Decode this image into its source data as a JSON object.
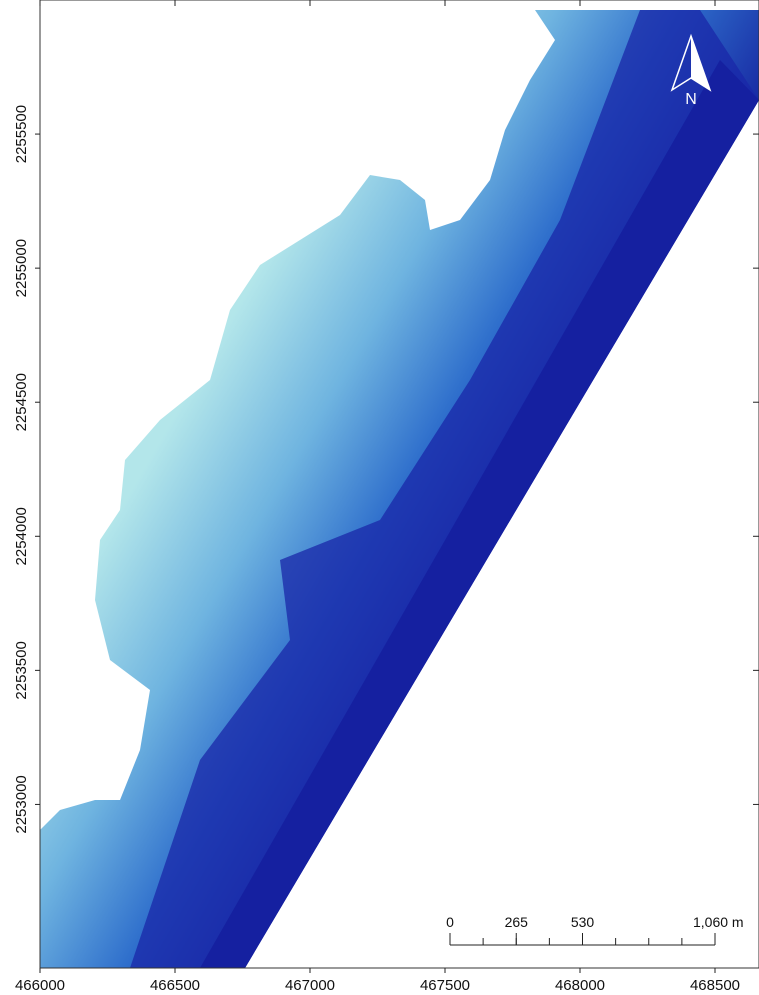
{
  "map": {
    "xlim": [
      466000,
      468663
    ],
    "ylim": [
      2252390,
      2256000
    ],
    "x_ticks": [
      466000,
      466500,
      467000,
      467500,
      468000,
      468500
    ],
    "y_ticks": [
      2253000,
      2253500,
      2254000,
      2254500,
      2255000,
      2255500
    ],
    "north_label": "N",
    "scale_bar": [
      {
        "value": 0,
        "label": "0"
      },
      {
        "value": 265,
        "label": "265"
      },
      {
        "value": 530,
        "label": "530"
      },
      {
        "value": 1060,
        "label": "1,060 m"
      }
    ]
  }
}
